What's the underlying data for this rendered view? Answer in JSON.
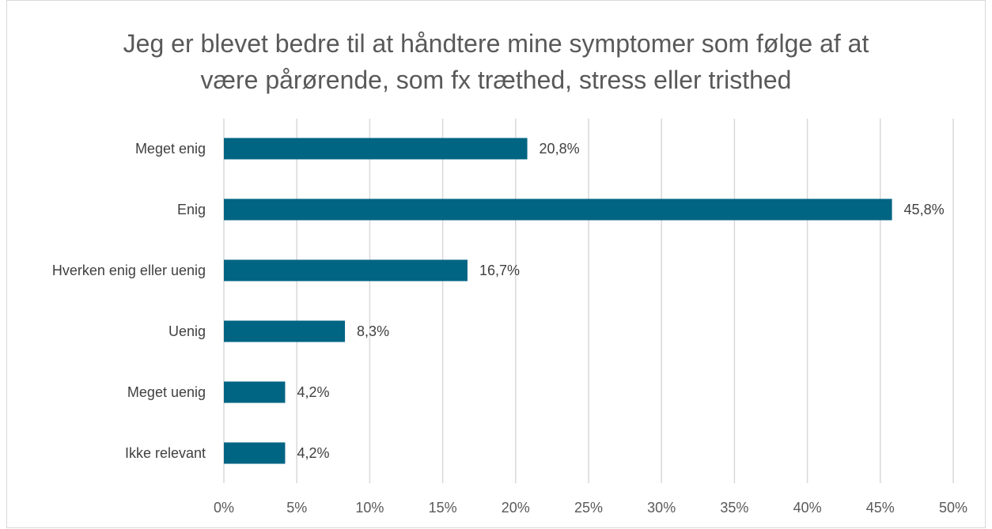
{
  "chart_data": {
    "type": "bar",
    "orientation": "horizontal",
    "title": "Jeg er blevet bedre til at håndtere mine symptomer som følge af at være pårørende, som fx træthed, stress eller tristhed",
    "categories": [
      "Meget enig",
      "Enig",
      "Hverken enig eller uenig",
      "Uenig",
      "Meget uenig",
      "Ikke relevant"
    ],
    "values": [
      20.8,
      45.8,
      16.7,
      8.3,
      4.2,
      4.2
    ],
    "value_labels": [
      "20,8%",
      "45,8%",
      "16,7%",
      "8,3%",
      "4,2%",
      "4,2%"
    ],
    "color": "#006483",
    "xlim": [
      0,
      50
    ],
    "xticks": [
      {
        "value": 0,
        "label": "0%"
      },
      {
        "value": 5,
        "label": "5%"
      },
      {
        "value": 10,
        "label": "10%"
      },
      {
        "value": 15,
        "label": "15%"
      },
      {
        "value": 20,
        "label": "20%"
      },
      {
        "value": 25,
        "label": "25%"
      },
      {
        "value": 30,
        "label": "30%"
      },
      {
        "value": 35,
        "label": "35%"
      },
      {
        "value": 40,
        "label": "40%"
      },
      {
        "value": 45,
        "label": "45%"
      },
      {
        "value": 50,
        "label": "50%"
      }
    ],
    "grid": true
  }
}
